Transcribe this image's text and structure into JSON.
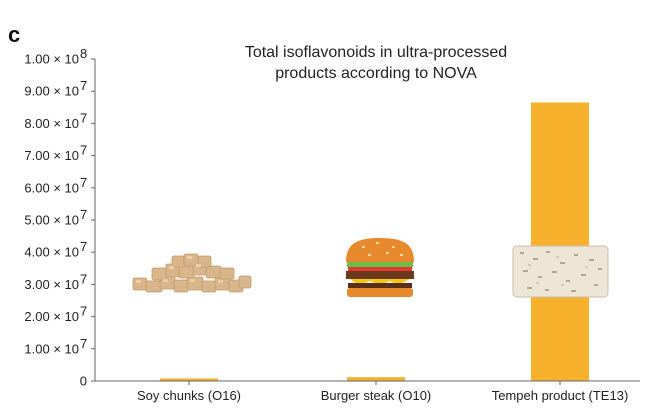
{
  "panel_label": "c",
  "chart_data": {
    "type": "bar",
    "title": [
      "Total isoflavonoids in ultra-processed",
      "products according to NOVA"
    ],
    "categories": [
      "Soy chunks (O16)",
      "Burger steak (O10)",
      "Tempeh product (TE13)"
    ],
    "values": [
      800000,
      1200000,
      86500000
    ],
    "ylim": [
      0,
      100000000
    ],
    "yticks": [
      {
        "value": 0,
        "label": "0"
      },
      {
        "value": 10000000,
        "label": "1.00 × 10",
        "exp": "7"
      },
      {
        "value": 20000000,
        "label": "2.00 × 10",
        "exp": "7"
      },
      {
        "value": 30000000,
        "label": "3.00 × 10",
        "exp": "7"
      },
      {
        "value": 40000000,
        "label": "4.00 × 10",
        "exp": "7"
      },
      {
        "value": 50000000,
        "label": "5.00 × 10",
        "exp": "7"
      },
      {
        "value": 60000000,
        "label": "6.00 × 10",
        "exp": "7"
      },
      {
        "value": 70000000,
        "label": "7.00 × 10",
        "exp": "7"
      },
      {
        "value": 80000000,
        "label": "8.00 × 10",
        "exp": "7"
      },
      {
        "value": 90000000,
        "label": "9.00 × 10",
        "exp": "7"
      },
      {
        "value": 100000000,
        "label": "1.00 × 10",
        "exp": "8"
      }
    ],
    "xlabel": "",
    "ylabel": "",
    "grid": false,
    "bar_color": "#F7B12C",
    "axis_color": "#666666"
  },
  "illustrations": [
    "soy-chunks-illustration",
    "burger-illustration",
    "tempeh-block-illustration"
  ]
}
